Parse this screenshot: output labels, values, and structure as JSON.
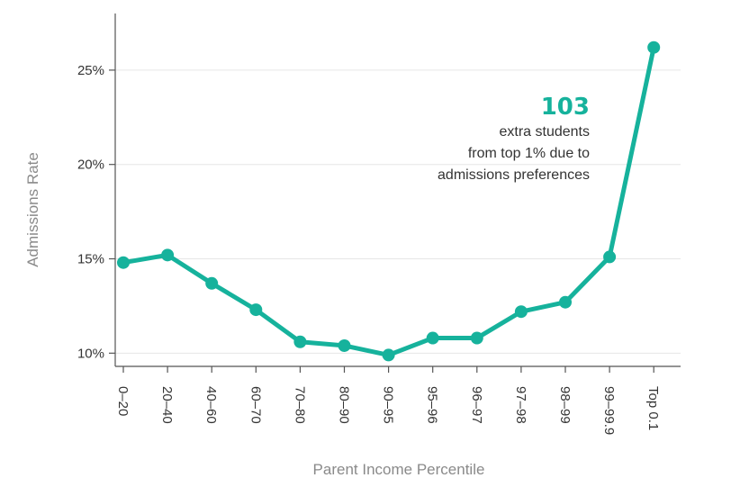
{
  "chart_data": {
    "type": "line",
    "categories": [
      "0–20",
      "20–40",
      "40–60",
      "60–70",
      "70–80",
      "80–90",
      "90–95",
      "95–96",
      "96–97",
      "97–98",
      "98–99",
      "99–99.9",
      "Top 0.1"
    ],
    "values": [
      14.8,
      15.2,
      13.7,
      12.3,
      10.6,
      10.4,
      9.9,
      10.8,
      10.8,
      12.2,
      12.7,
      15.1,
      26.2
    ],
    "xlabel": "Parent Income Percentile",
    "ylabel": "Admissions Rate",
    "ylim": [
      9.3,
      28.0
    ],
    "yticks": [
      10,
      15,
      20,
      25
    ],
    "ytick_labels": [
      "10%",
      "15%",
      "20%",
      "25%"
    ],
    "grid": "horizontal",
    "annotation": {
      "number": "103",
      "lines": [
        "extra students",
        "from top 1% due to",
        "admissions preferences"
      ]
    },
    "colors": {
      "line": "#16b29c",
      "grid": "#e6e6e6",
      "axis": "#555555"
    }
  }
}
